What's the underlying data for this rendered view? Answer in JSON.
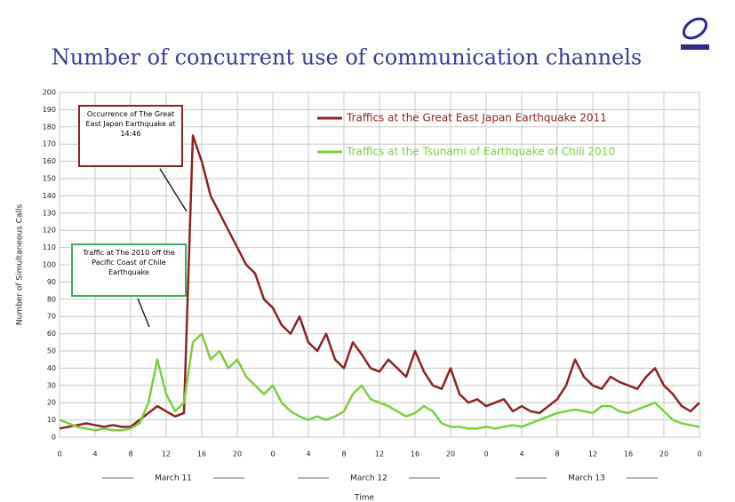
{
  "chart_data": {
    "type": "line",
    "title": "Number of concurrent use of communication channels",
    "y_label": "Number of Simultaneous Calls",
    "x_label": "Time",
    "day_labels": [
      "March 11",
      "March 12",
      "March 13"
    ],
    "annotations": [
      "Occurrence of The Great East Japan Earthquake at 14:46",
      "Traffic at The 2010 off the Pacific Coast of Chile Earthquake"
    ],
    "x": [
      0,
      1,
      2,
      3,
      4,
      5,
      6,
      7,
      8,
      9,
      10,
      11,
      12,
      13,
      14,
      15,
      16,
      17,
      18,
      19,
      20,
      21,
      22,
      23,
      24,
      25,
      26,
      27,
      28,
      29,
      30,
      31,
      32,
      33,
      34,
      35,
      36,
      37,
      38,
      39,
      40,
      41,
      42,
      43,
      44,
      45,
      46,
      47,
      48,
      49,
      50,
      51,
      52,
      53,
      54,
      55,
      56,
      57,
      58,
      59,
      60,
      61,
      62,
      63,
      64,
      65,
      66,
      67,
      68,
      69,
      70,
      71,
      72
    ],
    "series": [
      {
        "name": "Traffics at the Great East Japan Earthquake 2011",
        "color": "#8b2323",
        "values": [
          5,
          6,
          7,
          8,
          7,
          6,
          7,
          6,
          6,
          10,
          14,
          18,
          15,
          12,
          14,
          175,
          160,
          140,
          130,
          120,
          110,
          100,
          95,
          80,
          75,
          65,
          60,
          70,
          55,
          50,
          60,
          45,
          40,
          55,
          48,
          40,
          38,
          45,
          40,
          35,
          50,
          38,
          30,
          28,
          40,
          25,
          20,
          22,
          18,
          20,
          22,
          15,
          18,
          15,
          14,
          18,
          22,
          30,
          45,
          35,
          30,
          28,
          35,
          32,
          30,
          28,
          35,
          40,
          30,
          25,
          18,
          15,
          20
        ]
      },
      {
        "name": "Traffics at the Tsunami of Earthquake of Chili 2010",
        "color": "#7ccf3c",
        "values": [
          10,
          8,
          6,
          5,
          4,
          5,
          4,
          4,
          5,
          8,
          20,
          45,
          25,
          15,
          20,
          55,
          60,
          45,
          50,
          40,
          45,
          35,
          30,
          25,
          30,
          20,
          15,
          12,
          10,
          12,
          10,
          12,
          15,
          25,
          30,
          22,
          20,
          18,
          15,
          12,
          14,
          18,
          15,
          8,
          6,
          6,
          5,
          5,
          6,
          5,
          6,
          7,
          6,
          8,
          10,
          12,
          14,
          15,
          16,
          15,
          14,
          18,
          18,
          15,
          14,
          16,
          18,
          20,
          15,
          10,
          8,
          7,
          6
        ]
      }
    ],
    "xlim": [
      0,
      72
    ],
    "xticks": [
      0,
      4,
      8,
      12,
      16,
      20,
      {
        "value": 24,
        "label": "0"
      },
      {
        "value": 28,
        "label": "4"
      },
      {
        "value": 32,
        "label": "8"
      },
      {
        "value": 36,
        "label": "12"
      },
      {
        "value": 40,
        "label": "16"
      },
      {
        "value": 44,
        "label": "20"
      },
      {
        "value": 48,
        "label": "0"
      },
      {
        "value": 52,
        "label": "4"
      },
      {
        "value": 56,
        "label": "8"
      },
      {
        "value": 60,
        "label": "12"
      },
      {
        "value": 64,
        "label": "16"
      },
      {
        "value": 68,
        "label": "20"
      },
      {
        "value": 72,
        "label": "0"
      }
    ],
    "ylim": [
      0,
      200
    ],
    "yticks": [
      0,
      10,
      20,
      30,
      40,
      50,
      60,
      70,
      80,
      90,
      100,
      110,
      120,
      130,
      140,
      150,
      160,
      170,
      180,
      190,
      200
    ],
    "grid": true
  }
}
